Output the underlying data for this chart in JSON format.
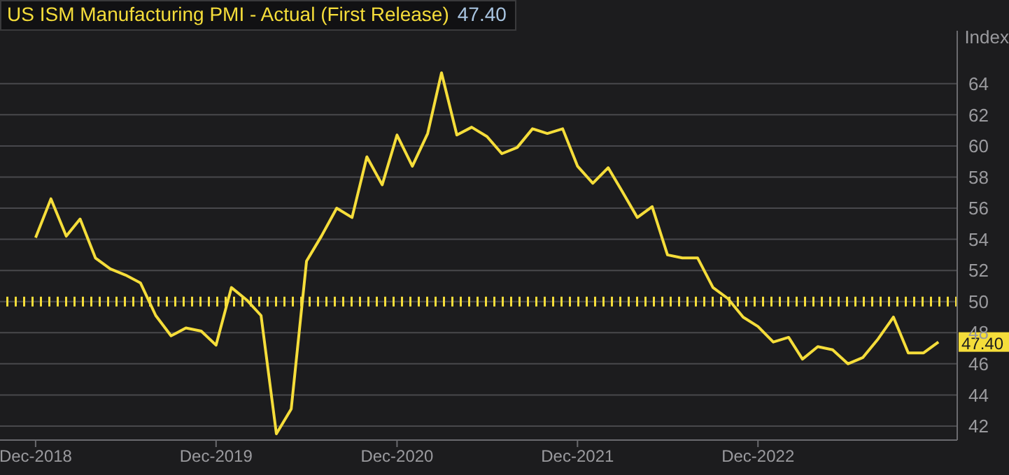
{
  "chart_data": {
    "type": "line",
    "ylabel": "Index",
    "x": [
      "2018-12",
      "2019-01",
      "2019-02",
      "2019-03",
      "2019-04",
      "2019-05",
      "2019-06",
      "2019-07",
      "2019-08",
      "2019-09",
      "2019-10",
      "2019-11",
      "2019-12",
      "2020-01",
      "2020-02",
      "2020-03",
      "2020-04",
      "2020-05",
      "2020-06",
      "2020-07",
      "2020-08",
      "2020-09",
      "2020-10",
      "2020-11",
      "2020-12",
      "2021-01",
      "2021-02",
      "2021-03",
      "2021-04",
      "2021-05",
      "2021-06",
      "2021-07",
      "2021-08",
      "2021-09",
      "2021-10",
      "2021-11",
      "2021-12",
      "2022-01",
      "2022-02",
      "2022-03",
      "2022-04",
      "2022-05",
      "2022-06",
      "2022-07",
      "2022-08",
      "2022-09",
      "2022-10",
      "2022-11",
      "2022-12",
      "2023-01",
      "2023-02",
      "2023-03",
      "2023-04",
      "2023-05",
      "2023-06",
      "2023-07",
      "2023-08",
      "2023-09",
      "2023-10",
      "2023-11",
      "2023-12"
    ],
    "series": [
      {
        "name": "US ISM Manufacturing PMI - Actual (First Release)",
        "color": "#f5dd3a",
        "values": [
          54.1,
          56.6,
          54.2,
          55.3,
          52.8,
          52.1,
          51.7,
          51.2,
          49.1,
          47.8,
          48.3,
          48.1,
          47.2,
          50.9,
          50.1,
          49.1,
          41.5,
          43.1,
          52.6,
          54.2,
          56.0,
          55.4,
          59.3,
          57.5,
          60.7,
          58.7,
          60.8,
          64.7,
          60.7,
          61.2,
          60.6,
          59.5,
          59.9,
          61.1,
          60.8,
          61.1,
          58.7,
          57.6,
          58.6,
          57.1,
          55.4,
          56.1,
          53.0,
          52.8,
          52.8,
          50.9,
          50.2,
          49.0,
          48.4,
          47.4,
          47.7,
          46.3,
          47.1,
          46.9,
          46.0,
          46.4,
          47.6,
          49.0,
          46.7,
          46.7,
          47.4
        ]
      }
    ],
    "xlim": [
      "2018-09-20",
      "2024-01-08"
    ],
    "xticks": [
      {
        "value": "2018-12",
        "label": "Dec-2018"
      },
      {
        "value": "2019-12",
        "label": "Dec-2019"
      },
      {
        "value": "2020-12",
        "label": "Dec-2020"
      },
      {
        "value": "2021-12",
        "label": "Dec-2021"
      },
      {
        "value": "2022-12",
        "label": "Dec-2022"
      }
    ],
    "ylim": [
      41.1,
      67.4
    ],
    "yticks": [
      42,
      44,
      46,
      48,
      50,
      52,
      54,
      56,
      58,
      60,
      62,
      64
    ],
    "ref_lines": [
      {
        "axis": "y",
        "value": 50,
        "color": "#f5dd3a",
        "line_style": "dotted"
      }
    ],
    "annotations": [
      "47.40",
      {
        "text": "47.40",
        "x": "2023-12",
        "y": 47.4
      }
    ],
    "grid": "y",
    "legend": "top left",
    "marker": "none",
    "line_style": "solid"
  }
}
